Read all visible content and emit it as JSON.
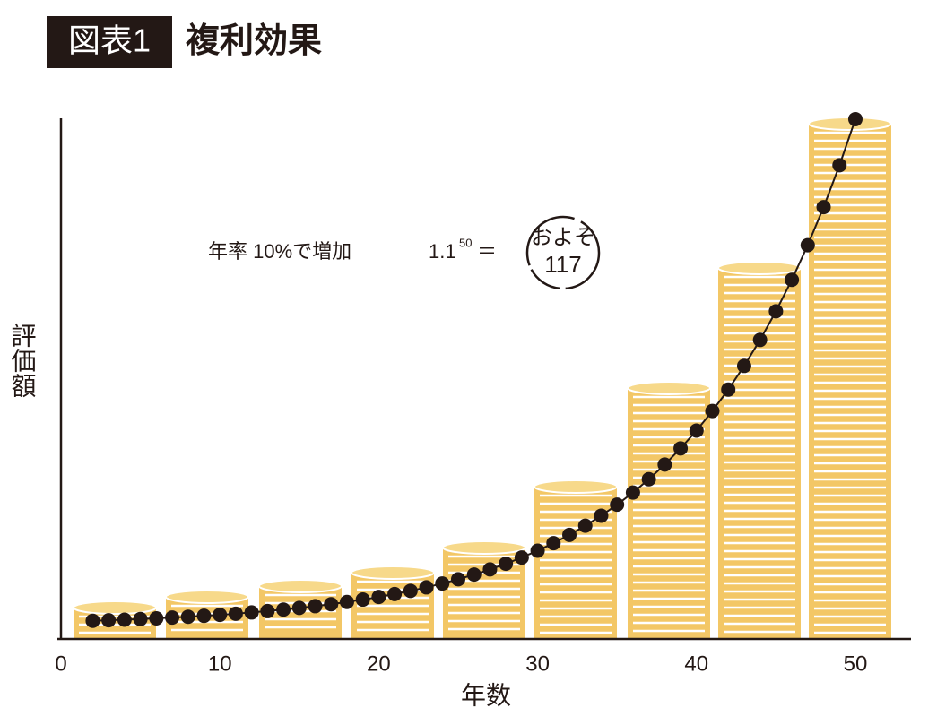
{
  "header": {
    "badge": "図表1",
    "title": "複利効果"
  },
  "chart_data": {
    "type": "line",
    "x": [
      2,
      3,
      4,
      5,
      6,
      7,
      8,
      9,
      10,
      11,
      12,
      13,
      14,
      15,
      16,
      17,
      18,
      19,
      20,
      21,
      22,
      23,
      24,
      25,
      26,
      27,
      28,
      29,
      30,
      31,
      32,
      33,
      34,
      35,
      36,
      37,
      38,
      39,
      40,
      41,
      42,
      43,
      44,
      45,
      46,
      47,
      48,
      49,
      50
    ],
    "values": [
      1.21,
      1.33,
      1.46,
      1.61,
      1.77,
      1.95,
      2.14,
      2.36,
      2.59,
      2.85,
      3.14,
      3.45,
      3.8,
      4.18,
      4.59,
      5.05,
      5.56,
      6.12,
      6.73,
      7.4,
      8.14,
      8.95,
      9.85,
      10.83,
      11.92,
      13.11,
      14.42,
      15.86,
      17.45,
      19.19,
      21.11,
      23.23,
      25.55,
      28.1,
      30.91,
      34.0,
      37.4,
      41.14,
      45.26,
      49.79,
      54.76,
      60.24,
      66.26,
      72.89,
      80.18,
      88.2,
      97.02,
      106.72,
      117.39
    ],
    "color": "#231815",
    "xlim": [
      0,
      53.5
    ],
    "xticks": [
      0,
      10,
      20,
      30,
      40,
      50
    ],
    "ylim": [
      -3,
      118
    ],
    "xlabel": "年数",
    "ylabel": "評価額",
    "annotation": {
      "text": "年率 10%で増加",
      "base": "1.1",
      "exponent": "50",
      "equals": "＝",
      "approx": "およそ",
      "result": 117
    }
  }
}
